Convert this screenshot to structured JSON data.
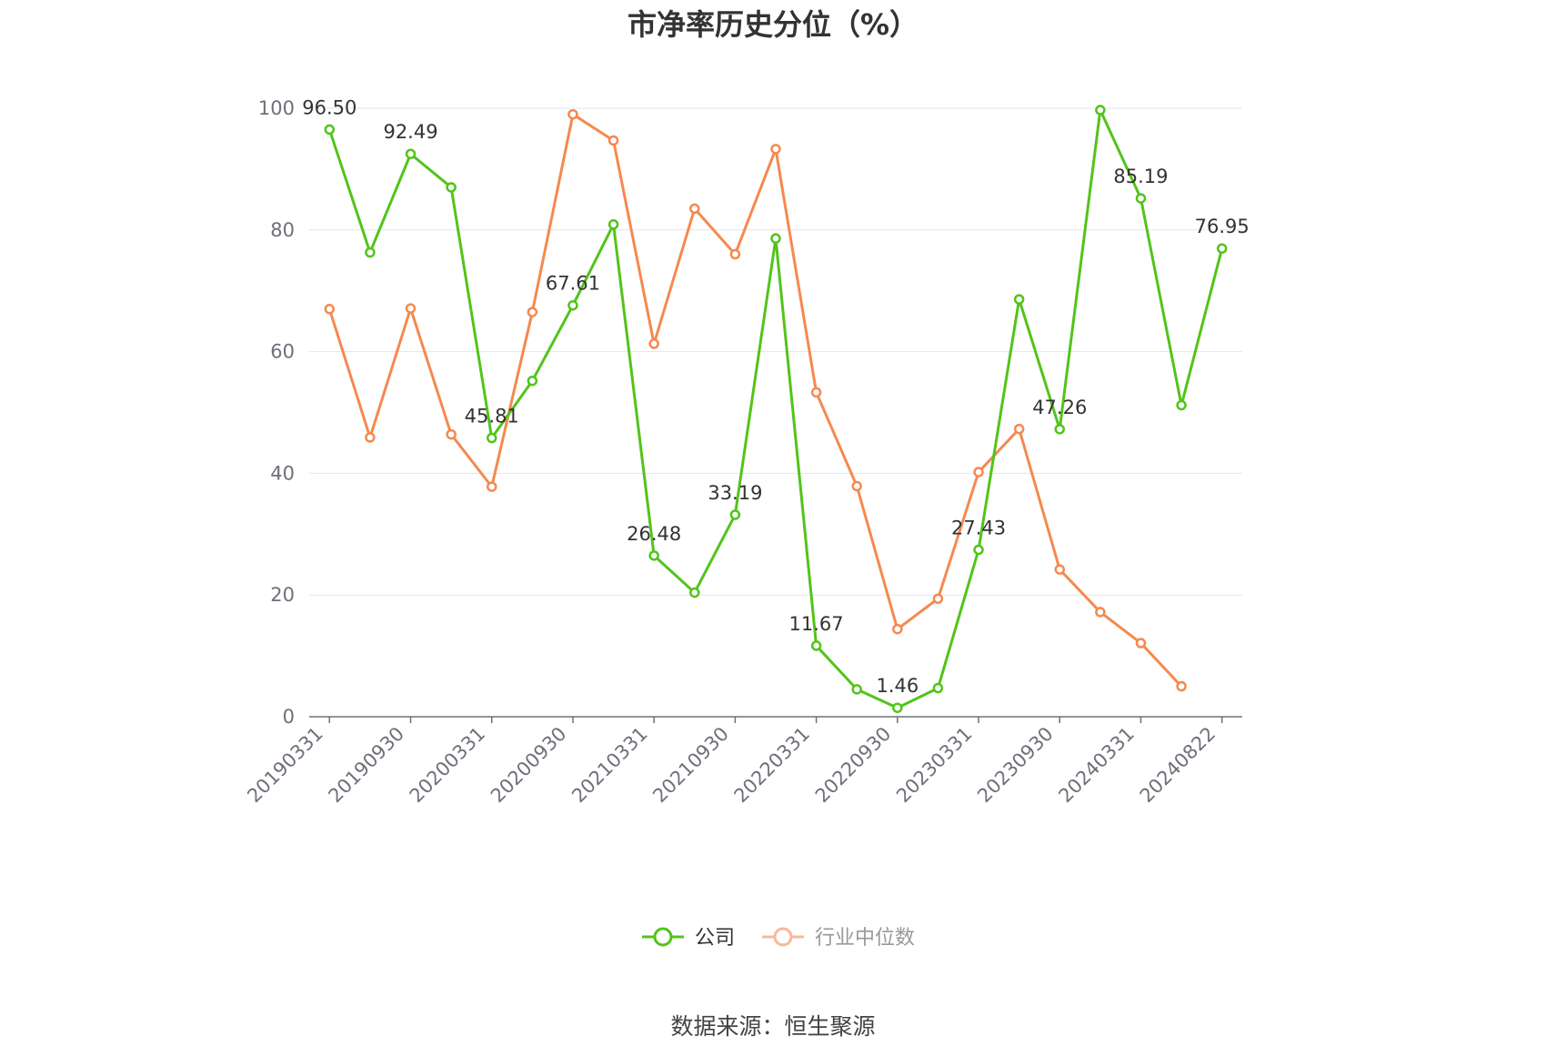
{
  "chart_data": {
    "type": "line",
    "title": "市净率历史分位（%）",
    "source": "数据来源：恒生聚源",
    "ylim": [
      0,
      100
    ],
    "yticks": [
      0,
      20,
      40,
      60,
      80,
      100
    ],
    "grid": true,
    "legend_position": "bottom",
    "x": [
      "20190331",
      "20190630",
      "20190930",
      "20191231",
      "20200331",
      "20200630",
      "20200930",
      "20201231",
      "20210331",
      "20210630",
      "20210930",
      "20211231",
      "20220331",
      "20220630",
      "20220930",
      "20221231",
      "20230331",
      "20230630",
      "20230930",
      "20231231",
      "20240331",
      "20240630",
      "20240822"
    ],
    "xtick_labels": [
      "20190331",
      "20190930",
      "20200331",
      "20200930",
      "20210331",
      "20210930",
      "20220331",
      "20220930",
      "20230331",
      "20230930",
      "20240331",
      "20240822"
    ],
    "series": [
      {
        "name": "公司",
        "color": "#52c41a",
        "values": [
          96.5,
          76.3,
          92.49,
          87.0,
          45.81,
          55.2,
          67.61,
          80.9,
          26.48,
          20.4,
          33.19,
          78.6,
          11.67,
          4.5,
          1.46,
          4.7,
          27.43,
          68.6,
          47.26,
          99.7,
          85.19,
          51.2,
          76.95
        ],
        "labeled_values": [
          96.5,
          92.49,
          45.81,
          67.61,
          26.48,
          33.19,
          11.67,
          1.46,
          27.43,
          47.26,
          85.19,
          76.95
        ]
      },
      {
        "name": "行业中位数",
        "color": "#f5894f",
        "values": [
          67.0,
          45.9,
          67.1,
          46.4,
          37.8,
          66.5,
          99.0,
          94.7,
          61.3,
          83.5,
          76.0,
          93.3,
          53.3,
          37.9,
          14.4,
          19.4,
          40.2,
          47.3,
          24.2,
          17.2,
          12.1,
          5.0,
          null
        ]
      }
    ]
  }
}
